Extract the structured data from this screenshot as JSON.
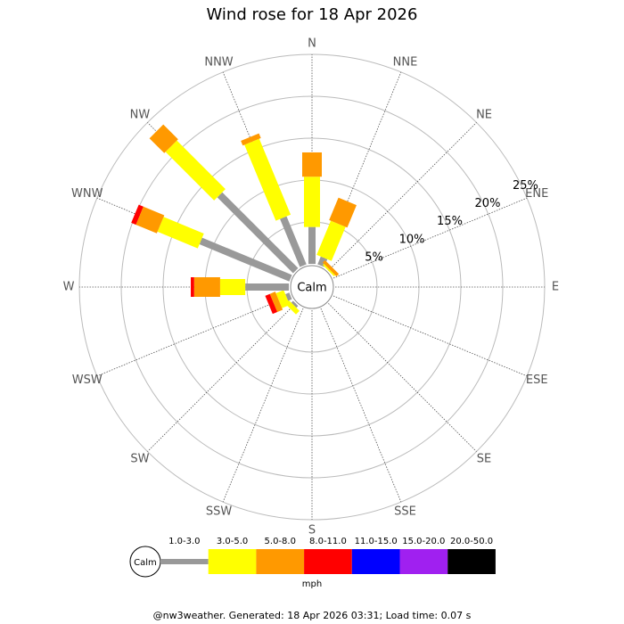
{
  "chart_data": {
    "type": "windrose",
    "title": "Wind rose for 18 Apr 2026",
    "directions": [
      "N",
      "NNE",
      "NE",
      "ENE",
      "E",
      "ESE",
      "SE",
      "SSE",
      "S",
      "SSW",
      "SW",
      "WSW",
      "W",
      "WNW",
      "NW",
      "NNW"
    ],
    "series": [
      {
        "name": "1.0-3.0",
        "color": "#999999",
        "values": [
          4.4,
          1.0,
          0,
          0,
          0,
          0,
          0,
          0,
          0,
          0,
          0.3,
          0.5,
          5.2,
          11.6,
          12.8,
          6.2
        ]
      },
      {
        "name": "3.0-5.0",
        "color": "#ffff00",
        "values": [
          6.0,
          4.4,
          0.2,
          0,
          0,
          0,
          0,
          0,
          0,
          0,
          0.6,
          1.0,
          3.0,
          5.2,
          8.2,
          9.8
        ]
      },
      {
        "name": "5.0-8.0",
        "color": "#ff9900",
        "values": [
          2.9,
          2.9,
          0.4,
          0,
          0,
          0,
          0,
          0,
          0,
          0,
          0,
          0.7,
          3.1,
          2.7,
          2.5,
          0.6
        ]
      },
      {
        "name": "8.0-11.0",
        "color": "#ff0000",
        "values": [
          0,
          0,
          0,
          0,
          0,
          0,
          0,
          0,
          0,
          0,
          0,
          0.6,
          0.4,
          0.6,
          0,
          0
        ]
      },
      {
        "name": "11.0-15.0",
        "color": "#0000ff",
        "values": [
          0,
          0,
          0,
          0,
          0,
          0,
          0,
          0,
          0,
          0,
          0,
          0,
          0,
          0,
          0,
          0
        ]
      },
      {
        "name": "15.0-20.0",
        "color": "#a020f0",
        "values": [
          0,
          0,
          0,
          0,
          0,
          0,
          0,
          0,
          0,
          0,
          0,
          0,
          0,
          0,
          0,
          0
        ]
      },
      {
        "name": "20.0-50.0",
        "color": "#000000",
        "values": [
          0,
          0,
          0,
          0,
          0,
          0,
          0,
          0,
          0,
          0,
          0,
          0,
          0,
          0,
          0,
          0
        ]
      }
    ],
    "rlim": [
      0,
      25
    ],
    "rticks": [
      {
        "value": 5,
        "label": "5%"
      },
      {
        "value": 10,
        "label": "10%"
      },
      {
        "value": 15,
        "label": "15%"
      },
      {
        "value": 20,
        "label": "20%"
      },
      {
        "value": 25,
        "label": "25%"
      }
    ],
    "calm_label": "Calm",
    "unit": "mph",
    "footer": "@nw3weather. Generated: 18 Apr 2026 03:31; Load time: 0.07 s"
  }
}
